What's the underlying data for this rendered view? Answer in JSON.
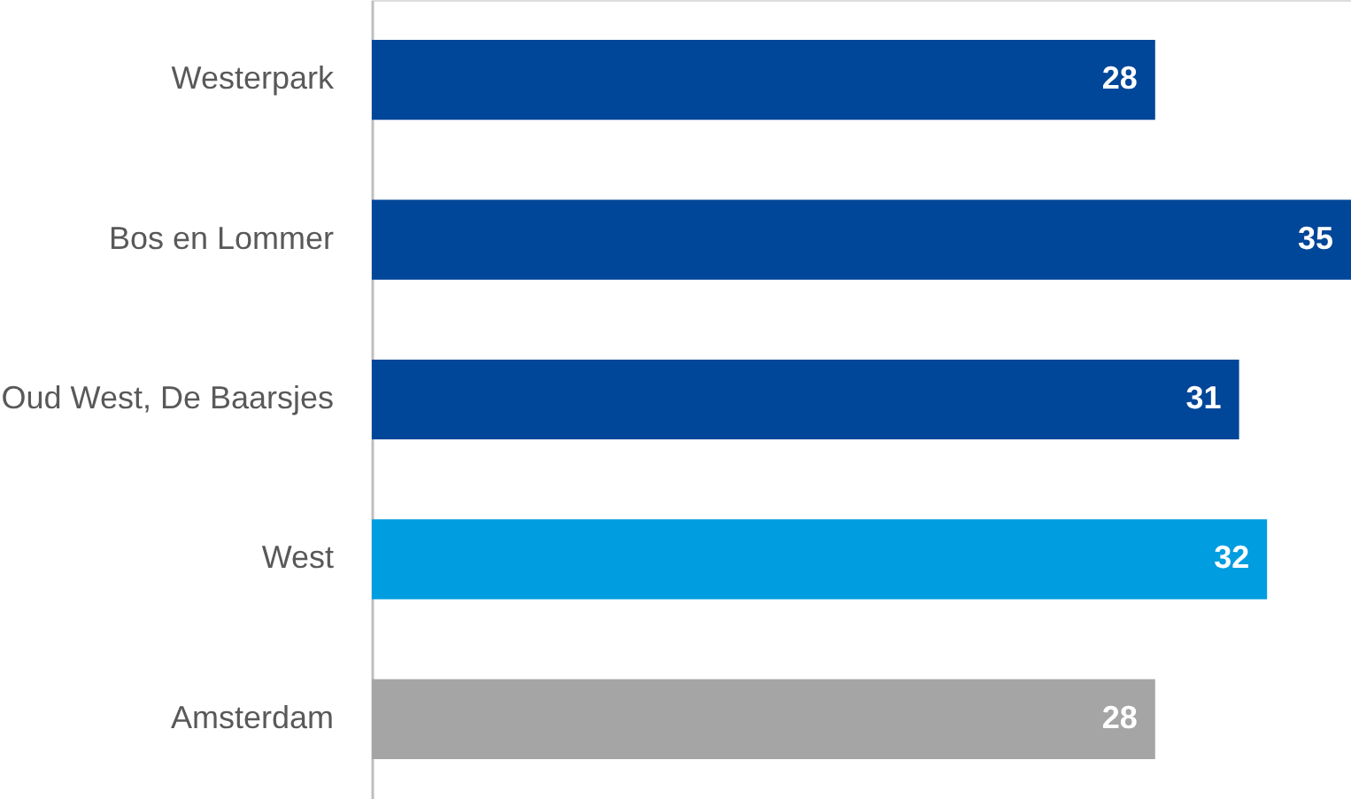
{
  "chart_data": {
    "type": "bar",
    "orientation": "horizontal",
    "categories": [
      "Westerpark",
      "Bos en Lommer",
      "Oud West, De Baarsjes",
      "West",
      "Amsterdam"
    ],
    "values": [
      28,
      35,
      31,
      32,
      28
    ],
    "colors": [
      "#004699",
      "#004699",
      "#004699",
      "#009de0",
      "#a5a5a5"
    ],
    "xlim": [
      0,
      35
    ],
    "data_labels": true
  }
}
